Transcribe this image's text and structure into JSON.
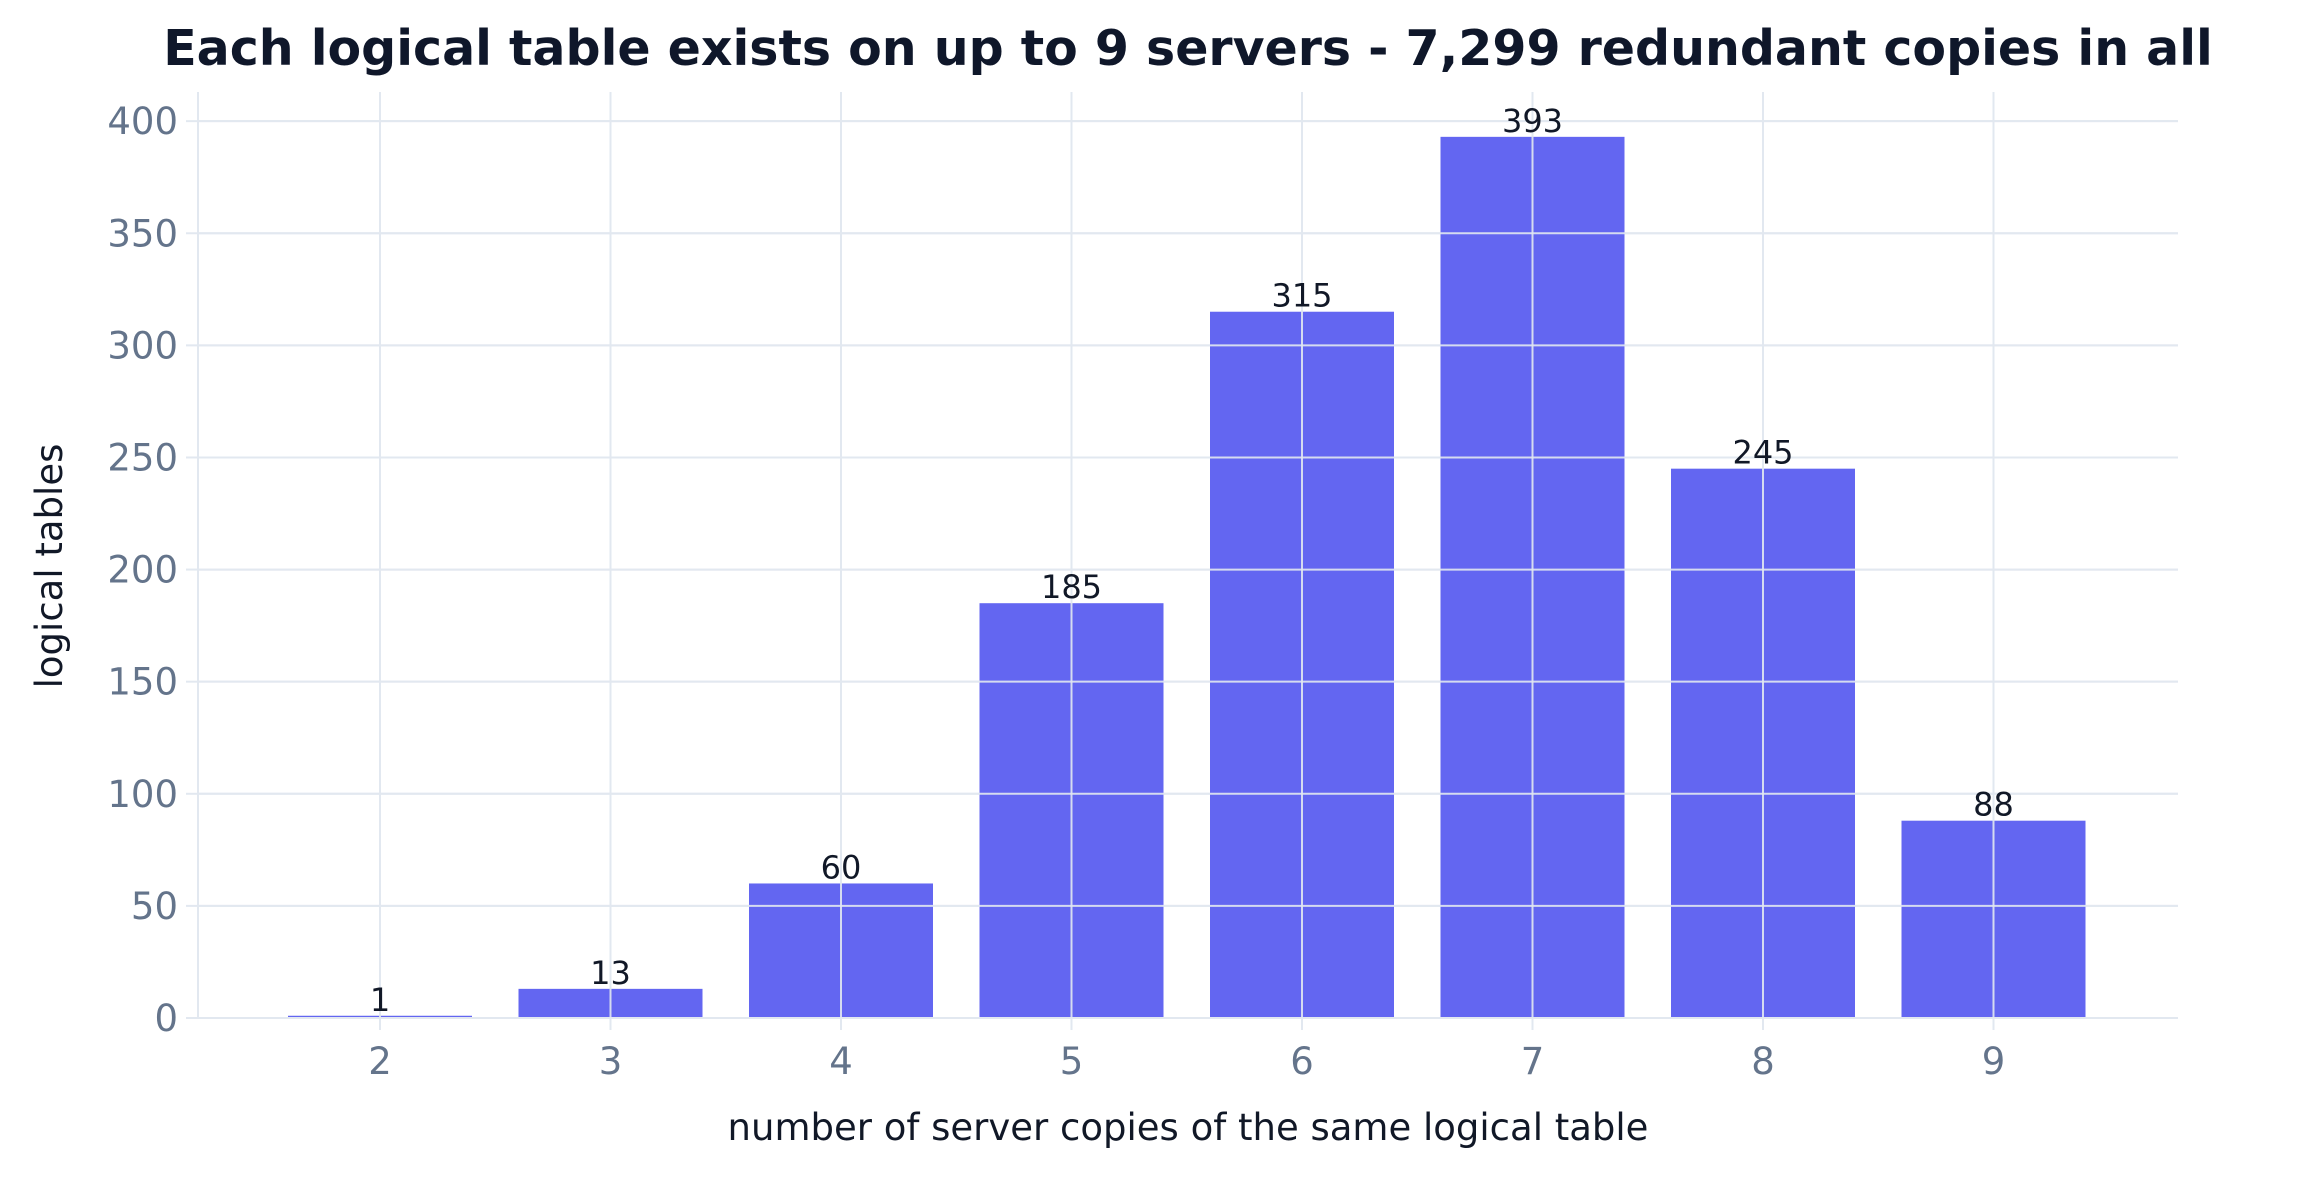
{
  "chart_data": {
    "type": "bar",
    "title": "Each logical table exists on up to 9 servers - 7,299 redundant copies in all",
    "xlabel": "number of server copies of the same logical table",
    "ylabel": "logical tables",
    "categories": [
      "2",
      "3",
      "4",
      "5",
      "6",
      "7",
      "8",
      "9"
    ],
    "values": [
      1,
      13,
      60,
      185,
      315,
      393,
      245,
      88
    ],
    "data_labels": [
      "1",
      "13",
      "60",
      "185",
      "315",
      "393",
      "245",
      "88"
    ],
    "ylim": [
      0,
      413
    ],
    "yticks": [
      0,
      50,
      100,
      150,
      200,
      250,
      300,
      350,
      400
    ],
    "ytick_labels": [
      "0",
      "50",
      "100",
      "150",
      "200",
      "250",
      "300",
      "350",
      "400"
    ],
    "grid": true,
    "legend": "none",
    "colors": {
      "bar": "#6366f1",
      "grid": "#e2e8f0",
      "tick_label": "#64748b",
      "title": "#0f172a"
    }
  }
}
